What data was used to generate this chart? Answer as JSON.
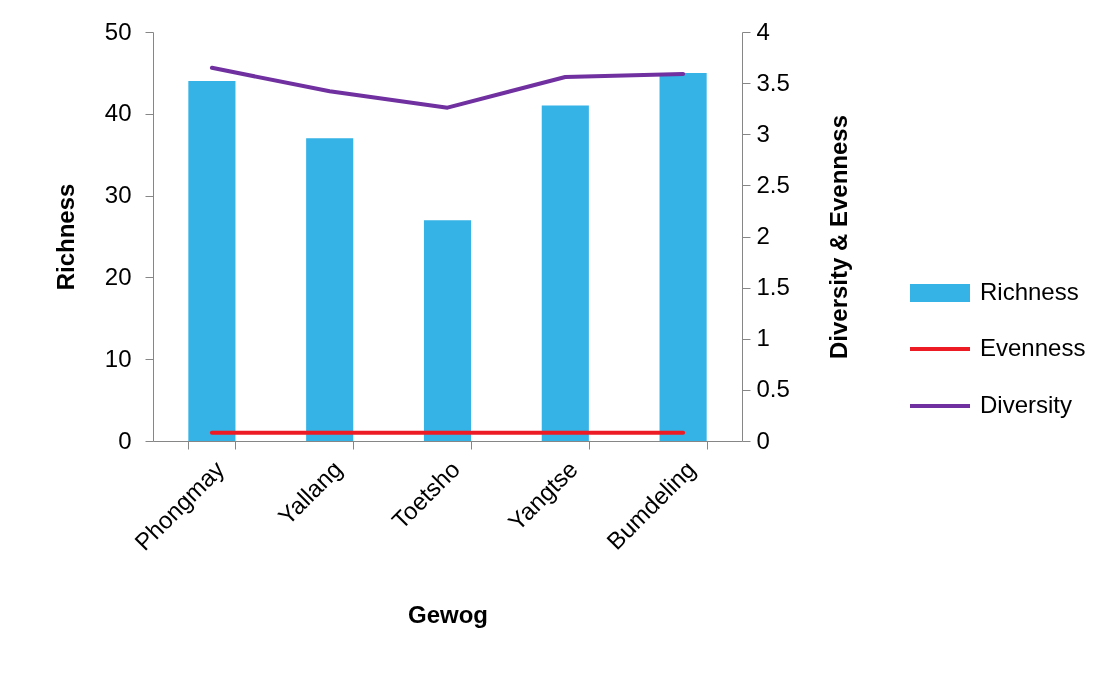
{
  "chart_data": {
    "type": "bar",
    "xlabel": "Gewog",
    "ylabel": "Richness",
    "y2label": "Diversity & Evenness",
    "categories": [
      "Phongmay",
      "Yallang",
      "Toetsho",
      "Yangtse",
      "Bumdeling"
    ],
    "series": [
      {
        "name": "Richness",
        "color": "#35b2e6",
        "values": [
          44,
          37,
          27,
          41,
          45
        ]
      },
      {
        "name": "Evenness",
        "type": "line",
        "axis": "y2",
        "color": "#ed1c24",
        "values": [
          0.08,
          0.08,
          0.08,
          0.08,
          0.08
        ]
      },
      {
        "name": "Diversity",
        "type": "line",
        "axis": "y2",
        "color": "#7030a0",
        "values": [
          3.65,
          3.42,
          3.26,
          3.56,
          3.59
        ]
      }
    ],
    "ylim": [
      0,
      50
    ],
    "yticks": [
      0,
      10,
      20,
      30,
      40,
      50
    ],
    "y2lim": [
      0,
      4
    ],
    "y2ticks": [
      0,
      0.5,
      1,
      1.5,
      2,
      2.5,
      3,
      3.5,
      4
    ],
    "legend": "right"
  }
}
